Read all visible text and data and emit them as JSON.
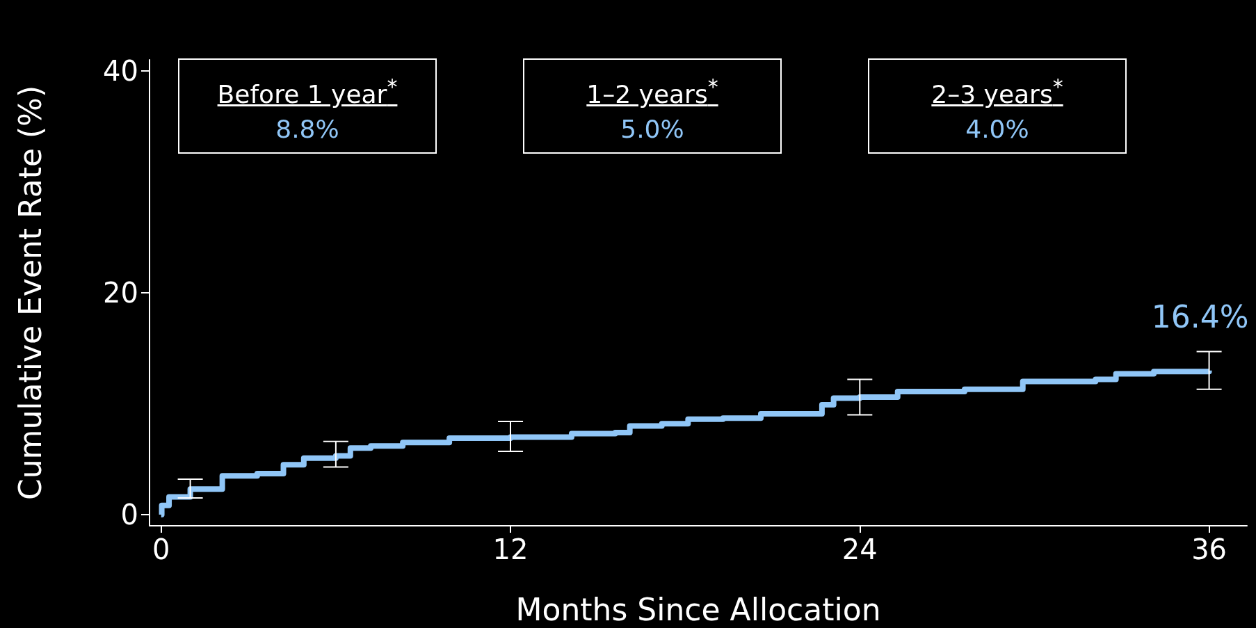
{
  "chart_data": {
    "type": "step",
    "xlabel": "Months Since Allocation",
    "ylabel": "Cumulative Event Rate (%)",
    "xlim": [
      -0.4,
      37.3
    ],
    "xticks": [
      0,
      12,
      24,
      36
    ],
    "ylim": [
      -1,
      41
    ],
    "yticks": [
      0,
      20,
      40
    ],
    "marker": "none",
    "line_style": "solid",
    "series": [
      {
        "color": "#90c6f7",
        "x": [
          0,
          0.02,
          0.27,
          1,
          2.1,
          3.3,
          4.2,
          4.9,
          6,
          6.5,
          7.2,
          8.3,
          9.9,
          12,
          14.1,
          15.6,
          16.1,
          17.2,
          18.1,
          19.3,
          20.6,
          22.7,
          23.1,
          24,
          25.3,
          27.6,
          29.6,
          32.1,
          32.8,
          34.1,
          36
        ],
        "values": [
          0,
          0.84,
          1.6,
          2.3,
          3.5,
          3.7,
          4.5,
          5.1,
          5.3,
          6.0,
          6.2,
          6.5,
          6.9,
          7.0,
          7.3,
          7.4,
          8.0,
          8.2,
          8.6,
          8.7,
          9.1,
          9.9,
          10.5,
          10.6,
          11.1,
          11.3,
          12.0,
          12.2,
          12.7,
          12.9,
          13.0
        ],
        "errors": [
          null,
          null,
          null,
          [
            1.5,
            3.2
          ],
          null,
          null,
          null,
          null,
          [
            4.3,
            6.6
          ],
          null,
          null,
          null,
          null,
          [
            5.7,
            8.4
          ],
          null,
          null,
          null,
          null,
          null,
          null,
          null,
          null,
          null,
          [
            9.0,
            12.2
          ],
          null,
          null,
          null,
          null,
          null,
          null,
          [
            11.3,
            14.7
          ]
        ]
      }
    ],
    "annotations": [
      "Before 1 year$^{*}$",
      "8.8%",
      "1–2 years$^{*}$",
      "5.0%",
      "2–3 years$^{*}$",
      "4.0%",
      {
        "text": "16.4%",
        "x": 36,
        "y": 13.0
      }
    ]
  }
}
